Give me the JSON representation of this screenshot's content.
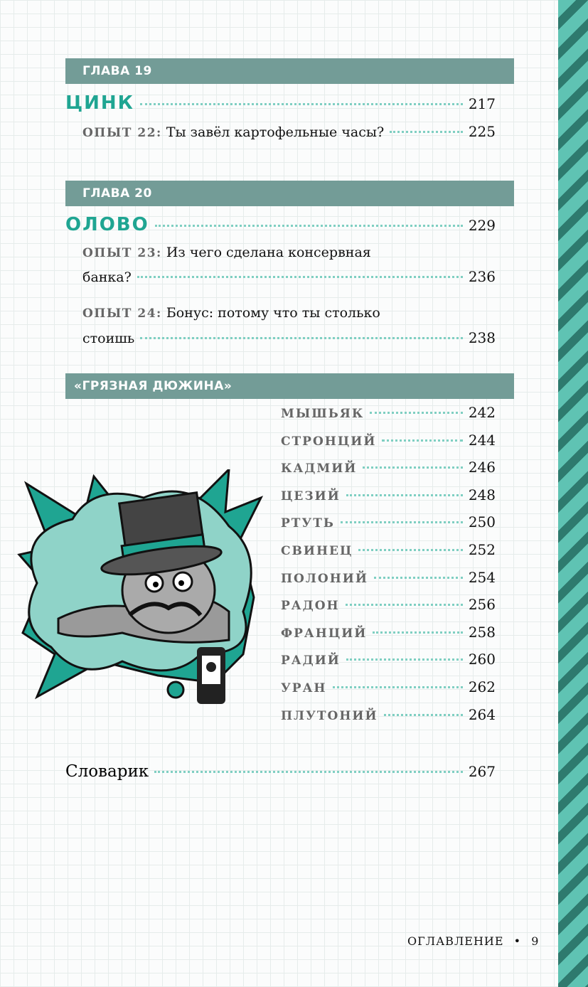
{
  "chapters": [
    {
      "label": "ГЛАВА 19",
      "title": "ЦИНК",
      "page": "217",
      "experiments": [
        {
          "label": "ОПЫТ 22:",
          "text": "Ты завёл картофельные часы?",
          "page": "225"
        }
      ]
    },
    {
      "label": "ГЛАВА 20",
      "title": "ОЛОВО",
      "page": "229",
      "experiments": [
        {
          "label": "ОПЫТ 23:",
          "text_line1": "Из чего сделана консервная",
          "text_line2": "банка?",
          "page": "236"
        },
        {
          "label": "ОПЫТ 24:",
          "text_line1": "Бонус: потому что ты столько",
          "text_line2": "стоишь",
          "page": "238"
        }
      ]
    }
  ],
  "dirty_dozen": {
    "label": "«ГРЯЗНАЯ ДЮЖИНА»",
    "items": [
      {
        "name": "МЫШЬЯК",
        "page": "242"
      },
      {
        "name": "СТРОНЦИЙ",
        "page": "244"
      },
      {
        "name": "КАДМИЙ",
        "page": "246"
      },
      {
        "name": "ЦЕЗИЙ",
        "page": "248"
      },
      {
        "name": "РТУТЬ",
        "page": "250"
      },
      {
        "name": "СВИНЕЦ",
        "page": "252"
      },
      {
        "name": "ПОЛОНИЙ",
        "page": "254"
      },
      {
        "name": "РАДОН",
        "page": "256"
      },
      {
        "name": "ФРАНЦИЙ",
        "page": "258"
      },
      {
        "name": "РАДИЙ",
        "page": "260"
      },
      {
        "name": "УРАН",
        "page": "262"
      },
      {
        "name": "ПЛУТОНИЙ",
        "page": "264"
      }
    ]
  },
  "glossary": {
    "label": "Словарик",
    "page": "267"
  },
  "footer": {
    "section": "ОГЛАВЛЕНИЕ",
    "bullet": "•",
    "page_number": "9"
  },
  "colors": {
    "accent": "#1fa592",
    "bar": "#739c97",
    "stripe_light": "#5fc3b3",
    "stripe_dark": "#2e7a6e"
  }
}
